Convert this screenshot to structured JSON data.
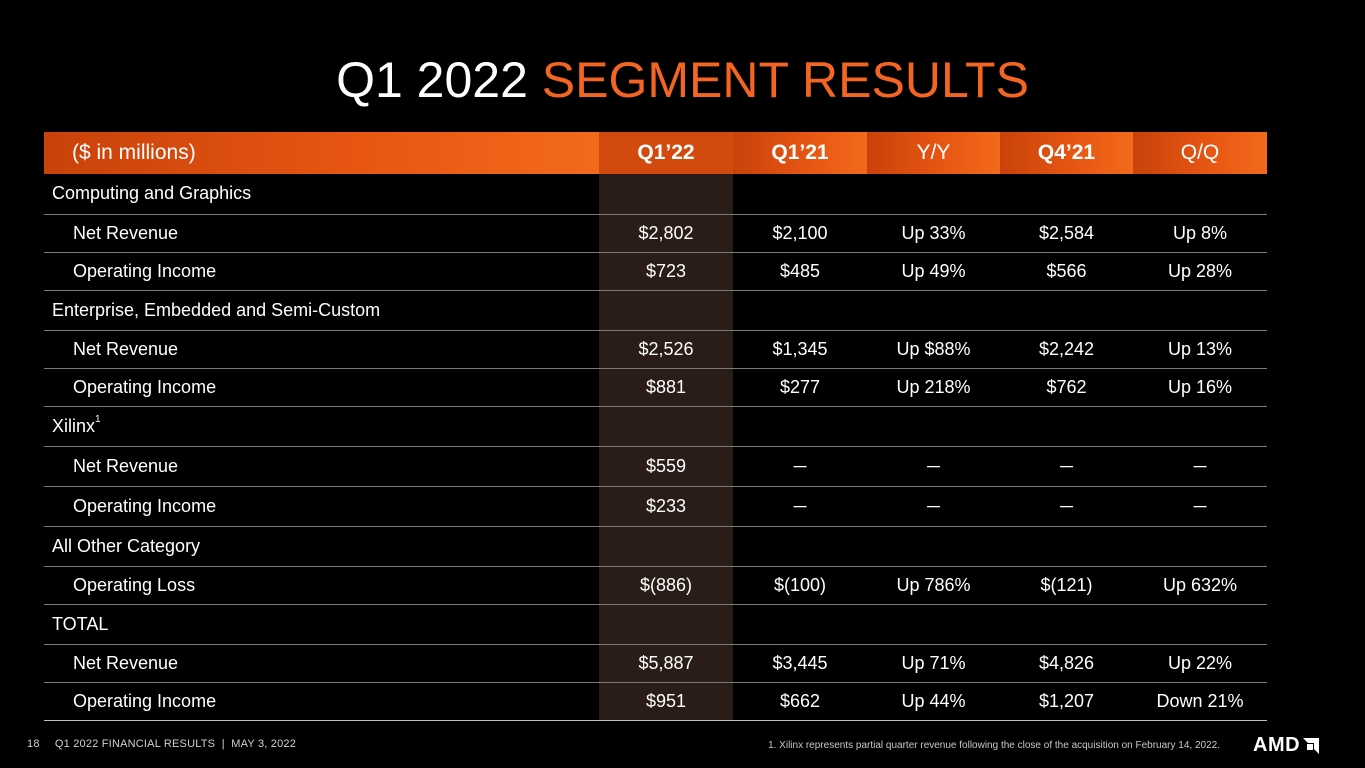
{
  "title": {
    "main": "Q1 2022",
    "accent": "SEGMENT RESULTS"
  },
  "table": {
    "headers": [
      "($ in millions)",
      "Q1’22",
      "Q1’21",
      "Y/Y",
      "Q4’21",
      "Q/Q"
    ],
    "rows": [
      {
        "label": "Computing and Graphics",
        "sup": "",
        "sub": false,
        "cells": [
          "",
          "",
          "",
          "",
          ""
        ]
      },
      {
        "label": "Net Revenue",
        "sup": "",
        "sub": true,
        "cells": [
          "$2,802",
          "$2,100",
          "Up 33%",
          "$2,584",
          "Up 8%"
        ]
      },
      {
        "label": "Operating Income",
        "sup": "",
        "sub": true,
        "cells": [
          "$723",
          "$485",
          "Up 49%",
          "$566",
          "Up 28%"
        ]
      },
      {
        "label": "Enterprise, Embedded and Semi-Custom",
        "sup": "",
        "sub": false,
        "cells": [
          "",
          "",
          "",
          "",
          ""
        ]
      },
      {
        "label": "Net Revenue",
        "sup": "",
        "sub": true,
        "cells": [
          "$2,526",
          "$1,345",
          "Up $88%",
          "$2,242",
          "Up 13%"
        ]
      },
      {
        "label": "Operating Income",
        "sup": "",
        "sub": true,
        "cells": [
          "$881",
          "$277",
          "Up 218%",
          "$762",
          "Up 16%"
        ]
      },
      {
        "label": "Xilinx",
        "sup": "1",
        "sub": false,
        "cells": [
          "",
          "",
          "",
          "",
          ""
        ]
      },
      {
        "label": "Net Revenue",
        "sup": "",
        "sub": true,
        "cells": [
          "$559",
          "─",
          "─",
          "─",
          "─"
        ]
      },
      {
        "label": "Operating Income",
        "sup": "",
        "sub": true,
        "cells": [
          "$233",
          "─",
          "─",
          "─",
          "─"
        ]
      },
      {
        "label": "All Other Category",
        "sup": "",
        "sub": false,
        "cells": [
          "",
          "",
          "",
          "",
          ""
        ]
      },
      {
        "label": "Operating Loss",
        "sup": "",
        "sub": true,
        "cells": [
          "$(886)",
          "$(100)",
          "Up 786%",
          "$(121)",
          "Up 632%"
        ]
      },
      {
        "label": "TOTAL",
        "sup": "",
        "sub": false,
        "cells": [
          "",
          "",
          "",
          "",
          ""
        ]
      },
      {
        "label": "Net Revenue",
        "sup": "",
        "sub": true,
        "cells": [
          "$5,887",
          "$3,445",
          "Up 71%",
          "$4,826",
          "Up 22%"
        ]
      },
      {
        "label": "Operating Income",
        "sup": "",
        "sub": true,
        "cells": [
          "$951",
          "$662",
          "Up 44%",
          "$1,207",
          "Down 21%"
        ]
      }
    ]
  },
  "footer": {
    "page": "18",
    "left_text": "Q1 2022 FINANCIAL RESULTS  |  MAY 3, 2022",
    "note": "1. Xilinx represents partial quarter revenue following the close of the acquisition on February 14, 2022.",
    "logo_text": "AMD"
  },
  "colors": {
    "accent": "#f26522",
    "header_bar": "#e65612",
    "highlight_column": "#2a1c16",
    "background": "#000000"
  },
  "icons": {
    "logo_arrow": "amd-arrow-icon"
  }
}
